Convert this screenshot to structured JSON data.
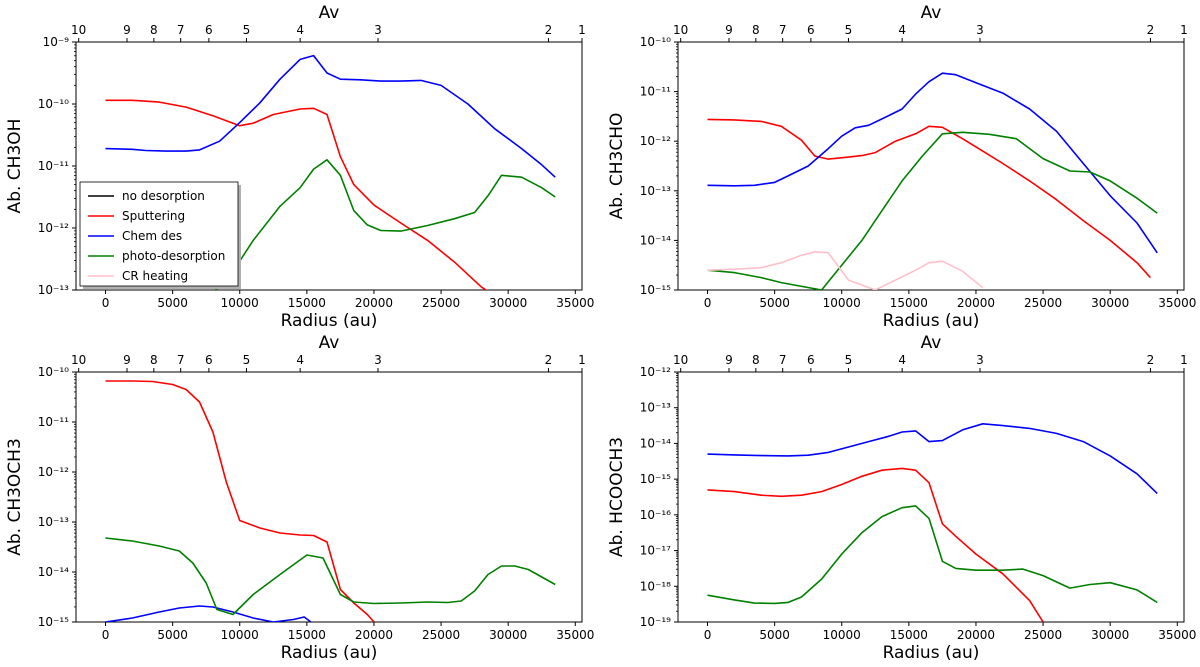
{
  "chart_data": [
    {
      "type": "line",
      "panel": "top-left",
      "ylabel": "Ab. CH3OH",
      "xlabel": "Radius (au)",
      "top_axis_label": "Av",
      "xlim": [
        -2200,
        35500
      ],
      "ylim_log10": [
        -13,
        -9
      ],
      "ylim": [
        "1e-13",
        "1e-9"
      ],
      "x_ticks": [
        0,
        5000,
        10000,
        15000,
        20000,
        25000,
        30000,
        35000
      ],
      "x_tick_labels": [
        "0",
        "5000",
        "10000",
        "15000",
        "20000",
        "25000",
        "30000",
        "35000"
      ],
      "y_tick_exponents": [
        -13,
        -12,
        -11,
        -10,
        -9
      ],
      "av_ticks": [
        {
          "label": "10",
          "x": -2000
        },
        {
          "label": "9",
          "x": 1600
        },
        {
          "label": "8",
          "x": 3600
        },
        {
          "label": "7",
          "x": 5600
        },
        {
          "label": "6",
          "x": 7700
        },
        {
          "label": "5",
          "x": 10500
        },
        {
          "label": "4",
          "x": 14500
        },
        {
          "label": "3",
          "x": 20300
        },
        {
          "label": "2",
          "x": 33000
        },
        {
          "label": "1",
          "x": 35500
        }
      ],
      "legend": {
        "position": "lower-left",
        "entries": [
          {
            "name": "no desorption",
            "color": "#000000"
          },
          {
            "name": "Sputtering",
            "color": "#ff0000"
          },
          {
            "name": "Chem des",
            "color": "#0000ff"
          },
          {
            "name": "photo-desorption",
            "color": "#008000"
          },
          {
            "name": "CR heating",
            "color": "#ffc0cb"
          }
        ]
      },
      "series": [
        {
          "name": "Sputtering",
          "color": "#ff0000",
          "x": [
            0,
            2000,
            4000,
            6000,
            8000,
            10000,
            11000,
            12500,
            14500,
            15500,
            16500,
            17500,
            18500,
            20000,
            22000,
            24000,
            26000,
            28000,
            30000
          ],
          "log10_values": [
            -9.94,
            -9.94,
            -9.97,
            -10.05,
            -10.19,
            -10.35,
            -10.31,
            -10.17,
            -10.08,
            -10.07,
            -10.17,
            -10.85,
            -11.3,
            -11.63,
            -11.92,
            -12.2,
            -12.55,
            -12.95,
            -13.25
          ]
        },
        {
          "name": "Chem des",
          "color": "#0000ff",
          "x": [
            0,
            2000,
            3000,
            4500,
            6000,
            7000,
            8500,
            10000,
            11500,
            13000,
            14500,
            15500,
            16500,
            17500,
            19000,
            20500,
            22000,
            23500,
            25000,
            27000,
            29000,
            31000,
            32500,
            33500
          ],
          "log10_values": [
            -10.72,
            -10.73,
            -10.75,
            -10.76,
            -10.76,
            -10.74,
            -10.6,
            -10.3,
            -9.98,
            -9.6,
            -9.28,
            -9.22,
            -9.5,
            -9.6,
            -9.61,
            -9.63,
            -9.63,
            -9.62,
            -9.7,
            -10.0,
            -10.4,
            -10.72,
            -10.98,
            -11.18
          ]
        },
        {
          "name": "photo-desorption",
          "color": "#008000",
          "x": [
            8200,
            9500,
            11000,
            13000,
            14500,
            15500,
            16500,
            17500,
            18500,
            19500,
            20500,
            22000,
            24000,
            26000,
            27500,
            28500,
            29500,
            31000,
            32500,
            33500
          ],
          "log10_values": [
            -13.0,
            -12.7,
            -12.2,
            -11.65,
            -11.35,
            -11.05,
            -10.9,
            -11.15,
            -11.72,
            -11.95,
            -12.04,
            -12.05,
            -11.96,
            -11.85,
            -11.75,
            -11.48,
            -11.15,
            -11.18,
            -11.35,
            -11.5
          ]
        }
      ]
    },
    {
      "type": "line",
      "panel": "top-right",
      "ylabel": "Ab. CH3CHO",
      "xlabel": "Radius (au)",
      "top_axis_label": "Av",
      "xlim": [
        -2200,
        35500
      ],
      "ylim_log10": [
        -15,
        -10
      ],
      "ylim": [
        "1e-15",
        "1e-10"
      ],
      "x_ticks": [
        0,
        5000,
        10000,
        15000,
        20000,
        25000,
        30000,
        35000
      ],
      "x_tick_labels": [
        "0",
        "5000",
        "10000",
        "15000",
        "20000",
        "25000",
        "30000",
        "35000"
      ],
      "y_tick_exponents": [
        -15,
        -14,
        -13,
        -12,
        -11,
        -10
      ],
      "av_ticks": [
        {
          "label": "10",
          "x": -2000
        },
        {
          "label": "9",
          "x": 1600
        },
        {
          "label": "8",
          "x": 3600
        },
        {
          "label": "7",
          "x": 5600
        },
        {
          "label": "6",
          "x": 7700
        },
        {
          "label": "5",
          "x": 10500
        },
        {
          "label": "4",
          "x": 14500
        },
        {
          "label": "3",
          "x": 20300
        },
        {
          "label": "2",
          "x": 33000
        },
        {
          "label": "1",
          "x": 35500
        }
      ],
      "series": [
        {
          "name": "Sputtering",
          "color": "#ff0000",
          "x": [
            0,
            2000,
            4000,
            5500,
            7000,
            8000,
            9000,
            10500,
            11500,
            12500,
            14000,
            15500,
            16500,
            17500,
            19000,
            20500,
            22000,
            24000,
            26000,
            28000,
            30000,
            32000,
            33000
          ],
          "log10_values": [
            -11.56,
            -11.57,
            -11.6,
            -11.7,
            -11.98,
            -12.3,
            -12.36,
            -12.32,
            -12.29,
            -12.23,
            -12.0,
            -11.85,
            -11.7,
            -11.72,
            -11.95,
            -12.2,
            -12.45,
            -12.8,
            -13.18,
            -13.6,
            -14.0,
            -14.45,
            -14.75
          ]
        },
        {
          "name": "Chem des",
          "color": "#0000ff",
          "x": [
            0,
            2000,
            3500,
            5000,
            6000,
            7500,
            9000,
            10000,
            11000,
            12000,
            13000,
            14500,
            15500,
            16500,
            17500,
            18500,
            20000,
            22000,
            24000,
            26000,
            28000,
            30000,
            32000,
            33500
          ],
          "log10_values": [
            -12.89,
            -12.9,
            -12.89,
            -12.83,
            -12.7,
            -12.5,
            -12.15,
            -11.9,
            -11.73,
            -11.68,
            -11.55,
            -11.35,
            -11.05,
            -10.8,
            -10.63,
            -10.66,
            -10.82,
            -11.03,
            -11.35,
            -11.8,
            -12.45,
            -13.1,
            -13.65,
            -14.25
          ]
        },
        {
          "name": "photo-desorption",
          "color": "#008000",
          "x": [
            0,
            2000,
            4000,
            5500,
            8500,
            10000,
            11500,
            13000,
            14500,
            16000,
            17500,
            19000,
            21000,
            23000,
            25000,
            27000,
            28500,
            30000,
            32000,
            33500
          ],
          "log10_values": [
            -14.6,
            -14.65,
            -14.75,
            -14.85,
            -15.0,
            -14.5,
            -14.0,
            -13.4,
            -12.8,
            -12.3,
            -11.85,
            -11.82,
            -11.86,
            -11.95,
            -12.35,
            -12.6,
            -12.62,
            -12.8,
            -13.15,
            -13.45
          ]
        },
        {
          "name": "CR heating",
          "color": "#ffc0cb",
          "x": [
            0,
            2000,
            4000,
            5500,
            7000,
            8000,
            9000,
            10500,
            12500,
            14000,
            15500,
            16500,
            17500,
            19000,
            20500
          ],
          "log10_values": [
            -14.6,
            -14.58,
            -14.55,
            -14.45,
            -14.3,
            -14.23,
            -14.25,
            -14.8,
            -15.0,
            -14.8,
            -14.6,
            -14.45,
            -14.42,
            -14.62,
            -14.95
          ]
        }
      ]
    },
    {
      "type": "line",
      "panel": "bottom-left",
      "ylabel": "Ab. CH3OCH3",
      "xlabel": "Radius (au)",
      "top_axis_label": "Av",
      "xlim": [
        -2200,
        35500
      ],
      "ylim_log10": [
        -15,
        -10
      ],
      "ylim": [
        "1e-15",
        "1e-10"
      ],
      "x_ticks": [
        0,
        5000,
        10000,
        15000,
        20000,
        25000,
        30000,
        35000
      ],
      "x_tick_labels": [
        "0",
        "5000",
        "10000",
        "15000",
        "20000",
        "25000",
        "30000",
        "35000"
      ],
      "y_tick_exponents": [
        -15,
        -14,
        -13,
        -12,
        -11,
        -10
      ],
      "av_ticks": [
        {
          "label": "10",
          "x": -2000
        },
        {
          "label": "9",
          "x": 1600
        },
        {
          "label": "8",
          "x": 3600
        },
        {
          "label": "7",
          "x": 5600
        },
        {
          "label": "6",
          "x": 7700
        },
        {
          "label": "5",
          "x": 10500
        },
        {
          "label": "4",
          "x": 14500
        },
        {
          "label": "3",
          "x": 20300
        },
        {
          "label": "2",
          "x": 33000
        },
        {
          "label": "1",
          "x": 35500
        }
      ],
      "series": [
        {
          "name": "Sputtering",
          "color": "#ff0000",
          "x": [
            0,
            2000,
            3500,
            5000,
            6000,
            7000,
            8000,
            9000,
            10000,
            11500,
            13000,
            14500,
            15500,
            16500,
            17500,
            18500,
            19500,
            20000
          ],
          "log10_values": [
            -10.18,
            -10.18,
            -10.19,
            -10.25,
            -10.35,
            -10.6,
            -11.2,
            -12.2,
            -12.97,
            -13.12,
            -13.22,
            -13.26,
            -13.27,
            -13.4,
            -14.35,
            -14.62,
            -14.85,
            -15.0
          ]
        },
        {
          "name": "Chem des",
          "color": "#0000ff",
          "x": [
            0,
            2000,
            4000,
            5500,
            7000,
            8000,
            9500,
            11000,
            12500,
            14000,
            14800,
            15300
          ],
          "log10_values": [
            -15.0,
            -14.92,
            -14.8,
            -14.72,
            -14.68,
            -14.7,
            -14.8,
            -14.92,
            -15.0,
            -14.95,
            -14.9,
            -15.0
          ]
        },
        {
          "name": "photo-desorption",
          "color": "#008000",
          "x": [
            0,
            2000,
            4000,
            5500,
            6500,
            7500,
            8300,
            9500,
            11000,
            13000,
            15000,
            16200,
            17500,
            18500,
            20000,
            22000,
            24000,
            25500,
            26500,
            27500,
            28500,
            29500,
            30500,
            31500,
            33500
          ],
          "log10_values": [
            -13.32,
            -13.38,
            -13.48,
            -13.58,
            -13.82,
            -14.22,
            -14.75,
            -14.85,
            -14.45,
            -14.05,
            -13.66,
            -13.72,
            -14.45,
            -14.6,
            -14.63,
            -14.62,
            -14.6,
            -14.61,
            -14.58,
            -14.38,
            -14.05,
            -13.88,
            -13.88,
            -13.95,
            -14.25
          ]
        }
      ]
    },
    {
      "type": "line",
      "panel": "bottom-right",
      "ylabel": "Ab. HCOOCH3",
      "xlabel": "Radius (au)",
      "top_axis_label": "Av",
      "xlim": [
        -2200,
        35500
      ],
      "ylim_log10": [
        -19,
        -12
      ],
      "ylim": [
        "1e-19",
        "1e-12"
      ],
      "x_ticks": [
        0,
        5000,
        10000,
        15000,
        20000,
        25000,
        30000,
        35000
      ],
      "x_tick_labels": [
        "0",
        "5000",
        "10000",
        "15000",
        "20000",
        "25000",
        "30000",
        "35000"
      ],
      "y_tick_exponents": [
        -19,
        -18,
        -17,
        -16,
        -15,
        -14,
        -13,
        -12
      ],
      "av_ticks": [
        {
          "label": "10",
          "x": -2000
        },
        {
          "label": "9",
          "x": 1600
        },
        {
          "label": "8",
          "x": 3600
        },
        {
          "label": "7",
          "x": 5600
        },
        {
          "label": "6",
          "x": 7700
        },
        {
          "label": "5",
          "x": 10500
        },
        {
          "label": "4",
          "x": 14500
        },
        {
          "label": "3",
          "x": 20300
        },
        {
          "label": "2",
          "x": 33000
        },
        {
          "label": "1",
          "x": 35500
        }
      ],
      "series": [
        {
          "name": "Chem des",
          "color": "#0000ff",
          "x": [
            0,
            2000,
            4000,
            6000,
            7500,
            9000,
            10500,
            12000,
            13500,
            14500,
            15500,
            16500,
            17500,
            19000,
            20500,
            22000,
            24000,
            26000,
            28000,
            30000,
            32000,
            33500
          ],
          "log10_values": [
            -14.3,
            -14.32,
            -14.34,
            -14.35,
            -14.33,
            -14.25,
            -14.1,
            -13.95,
            -13.8,
            -13.68,
            -13.65,
            -13.95,
            -13.92,
            -13.62,
            -13.45,
            -13.5,
            -13.58,
            -13.72,
            -13.95,
            -14.35,
            -14.85,
            -15.4
          ]
        },
        {
          "name": "Sputtering",
          "color": "#ff0000",
          "x": [
            0,
            2000,
            4000,
            5500,
            7000,
            8500,
            10000,
            11500,
            13000,
            14500,
            15500,
            16500,
            17500,
            18500,
            20000,
            22000,
            24000,
            25000
          ],
          "log10_values": [
            -15.3,
            -15.35,
            -15.45,
            -15.48,
            -15.45,
            -15.35,
            -15.15,
            -14.92,
            -14.75,
            -14.7,
            -14.75,
            -15.1,
            -16.25,
            -16.6,
            -17.1,
            -17.65,
            -18.4,
            -19.0
          ]
        },
        {
          "name": "photo-desorption",
          "color": "#008000",
          "x": [
            0,
            2000,
            3500,
            5000,
            6000,
            7000,
            8500,
            10000,
            11500,
            13000,
            14500,
            15500,
            16500,
            17500,
            18500,
            20000,
            22000,
            23500,
            25000,
            27000,
            28500,
            30000,
            32000,
            33500
          ],
          "log10_values": [
            -18.25,
            -18.38,
            -18.47,
            -18.48,
            -18.45,
            -18.3,
            -17.8,
            -17.1,
            -16.5,
            -16.05,
            -15.8,
            -15.75,
            -16.1,
            -17.3,
            -17.5,
            -17.55,
            -17.55,
            -17.52,
            -17.7,
            -18.05,
            -17.95,
            -17.9,
            -18.1,
            -18.45
          ]
        }
      ]
    }
  ]
}
